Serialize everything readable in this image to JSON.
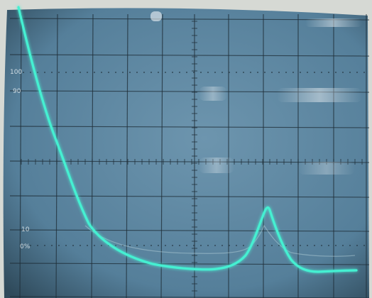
{
  "display": {
    "screen_color": "#5e88a3",
    "screen_edge_color": "#2d4656",
    "bezel_color": "#d8dbd6",
    "grid_color": "#1f2e38",
    "trace_color": "#45f0d2",
    "ghost_trace_color": "#bcd7de"
  },
  "graticule": {
    "label_100": "100",
    "label_90": "90",
    "label_10": "10",
    "label_0": "0%"
  }
}
